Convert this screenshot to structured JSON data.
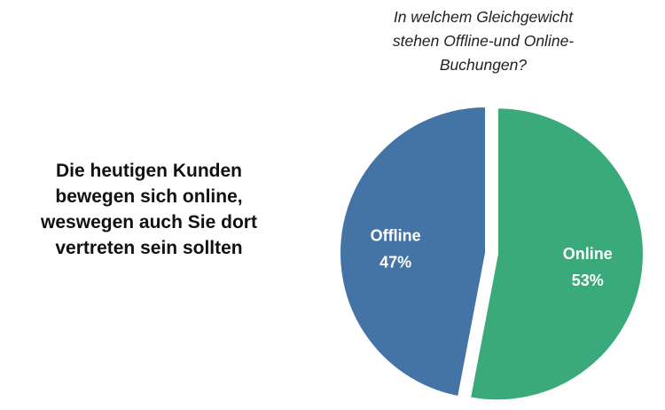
{
  "message": {
    "lines": [
      "Die heutigen Kunden",
      "bewegen sich online,",
      "weswegen auch Sie dort",
      "vertreten sein sollten"
    ]
  },
  "chart_data": {
    "type": "pie",
    "title_lines": [
      "In welchem Gleichgewicht",
      "stehen Offline-und Online-",
      "Buchungen?"
    ],
    "slices": [
      {
        "label": "Online",
        "value": 53,
        "value_label": "53%",
        "color": "#3aaa7a",
        "exploded": true
      },
      {
        "label": "Offline",
        "value": 47,
        "value_label": "47%",
        "color": "#4474a6",
        "exploded": false
      }
    ]
  }
}
